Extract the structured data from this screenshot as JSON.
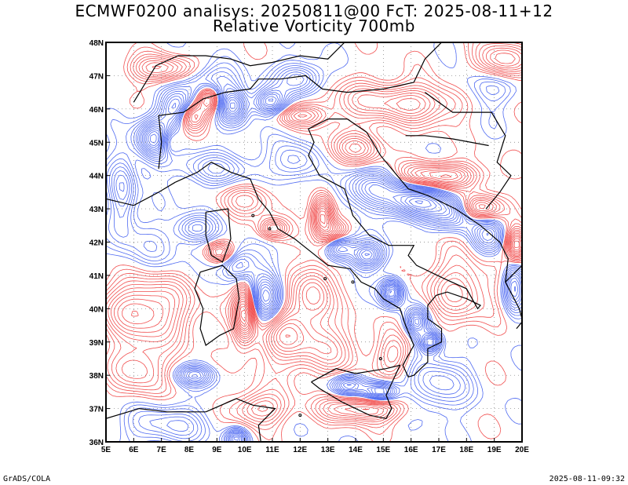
{
  "header": {
    "line1": "ECMWF0200 analisys: 20250811@00 FcT: 2025-08-11+12",
    "line2": "Relative Vorticity 700mb"
  },
  "footer": {
    "left": "GrADS/COLA",
    "right": "2025-08-11-09:32"
  },
  "map": {
    "lon_range": [
      5,
      20
    ],
    "lat_range": [
      36,
      48
    ],
    "lon_ticks": [
      "5E",
      "6E",
      "7E",
      "8E",
      "9E",
      "10E",
      "11E",
      "12E",
      "13E",
      "14E",
      "15E",
      "16E",
      "17E",
      "18E",
      "19E",
      "20E"
    ],
    "lat_ticks": [
      "36N",
      "37N",
      "38N",
      "39N",
      "40N",
      "41N",
      "42N",
      "43N",
      "44N",
      "45N",
      "46N",
      "47N",
      "48N"
    ],
    "positive_color": "#f03c3c",
    "negative_color": "#3c5af0",
    "coast_color": "#000000",
    "grid": "dotted"
  }
}
